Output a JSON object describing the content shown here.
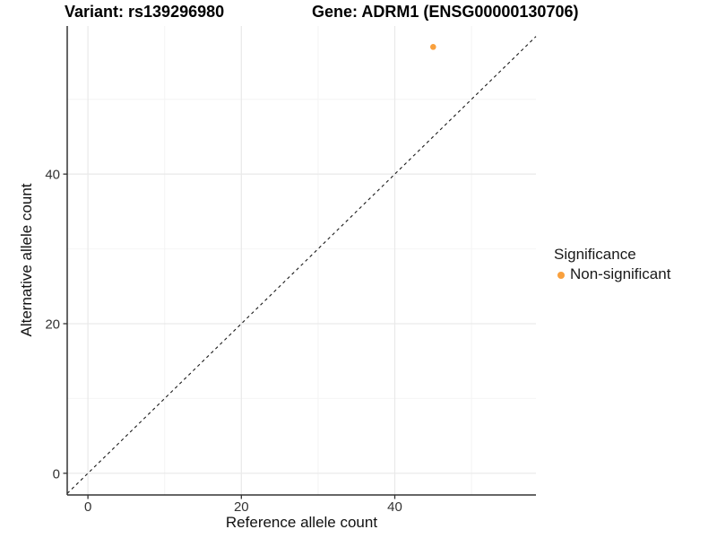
{
  "chart_data": {
    "type": "scatter",
    "title_left": "Variant: rs139296980",
    "title_right": "Gene: ADRM1 (ENSG00000130706)",
    "xlabel": "Reference allele count",
    "ylabel": "Alternative allele count",
    "xlim": [
      -2.7,
      58.4
    ],
    "ylim": [
      -2.9,
      59.8
    ],
    "x_ticks": [
      0,
      20,
      40
    ],
    "y_ticks": [
      0,
      20,
      40
    ],
    "x_minor_ticks": [
      10,
      30,
      50
    ],
    "y_minor_ticks": [
      10,
      30,
      50
    ],
    "grid": true,
    "legend_position": "right",
    "series": [
      {
        "name": "Non-significant",
        "color": "#F9A03D",
        "points": [
          {
            "x": 45,
            "y": 57
          }
        ]
      }
    ],
    "reference_line": {
      "type": "identity",
      "slope": 1,
      "intercept": 0,
      "style": "dashed",
      "color": "#1A1A1A"
    },
    "legend": {
      "title": "Significance",
      "items": [
        {
          "label": "Non-significant",
          "color": "#F9A03D"
        }
      ]
    },
    "colors": {
      "grid_major": "#E9E9E9",
      "grid_minor": "#F4F4F4",
      "axis_line": "#333333",
      "tick_mark": "#333333",
      "tick_label": "#333333"
    }
  }
}
